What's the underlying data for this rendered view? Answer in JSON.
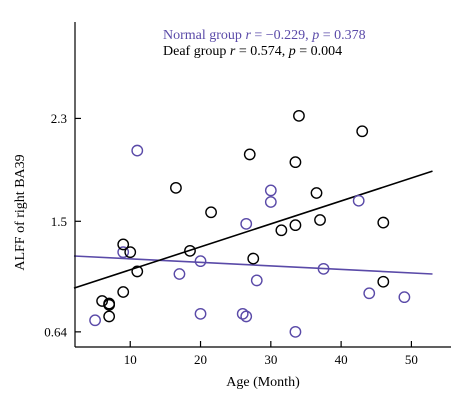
{
  "chart_data": {
    "type": "scatter",
    "xlabel": "Age (Month)",
    "ylabel": "ALFF of right BA39",
    "xlim": [
      2,
      53
    ],
    "ylim": [
      0.6,
      3.05
    ],
    "xticks": [
      10,
      20,
      30,
      40,
      50
    ],
    "xtick_labels": [
      "10",
      "20",
      "30",
      "40",
      "50"
    ],
    "yticks": [
      0.64,
      1.5,
      2.3
    ],
    "ytick_labels": [
      "0.64",
      "1.5",
      "2.3"
    ],
    "grid": false,
    "legend_position": "top",
    "annotations": [
      {
        "color": "#5a4aa8",
        "parts": [
          {
            "text": "Normal group ",
            "italic": false
          },
          {
            "text": "r",
            "italic": true
          },
          {
            "text": " = −0.229, ",
            "italic": false
          },
          {
            "text": "p",
            "italic": true
          },
          {
            "text": " = 0.378",
            "italic": false
          }
        ]
      },
      {
        "color": "#000000",
        "parts": [
          {
            "text": "Deaf group ",
            "italic": false
          },
          {
            "text": "r",
            "italic": true
          },
          {
            "text": " = 0.574, ",
            "italic": false
          },
          {
            "text": "p",
            "italic": true
          },
          {
            "text": " = 0.004",
            "italic": false
          }
        ]
      }
    ],
    "series": [
      {
        "name": "Normal group",
        "color": "#5a4aa8",
        "points": [
          [
            5,
            0.73
          ],
          [
            9,
            1.26
          ],
          [
            11,
            2.05
          ],
          [
            17,
            1.09
          ],
          [
            20,
            1.19
          ],
          [
            20,
            0.78
          ],
          [
            26,
            0.78
          ],
          [
            26.5,
            0.76
          ],
          [
            26.5,
            1.48
          ],
          [
            28,
            1.04
          ],
          [
            30,
            1.65
          ],
          [
            30,
            1.74
          ],
          [
            33.5,
            0.64
          ],
          [
            37.5,
            1.13
          ],
          [
            42.5,
            1.66
          ],
          [
            44,
            0.94
          ],
          [
            49,
            0.91
          ]
        ],
        "fit": {
          "x": [
            2,
            53
          ],
          "y": [
            1.23,
            1.09
          ]
        }
      },
      {
        "name": "Deaf group",
        "color": "#000000",
        "points": [
          [
            6,
            0.88
          ],
          [
            7,
            0.86
          ],
          [
            7,
            0.85
          ],
          [
            7,
            0.76
          ],
          [
            9,
            1.32
          ],
          [
            9,
            0.95
          ],
          [
            10,
            1.26
          ],
          [
            11,
            1.11
          ],
          [
            16.5,
            1.76
          ],
          [
            18.5,
            1.27
          ],
          [
            21.5,
            1.57
          ],
          [
            27,
            2.02
          ],
          [
            27.5,
            1.21
          ],
          [
            31.5,
            1.43
          ],
          [
            33.5,
            1.47
          ],
          [
            33.5,
            1.96
          ],
          [
            34,
            2.32
          ],
          [
            36.5,
            1.72
          ],
          [
            37,
            1.51
          ],
          [
            43,
            2.2
          ],
          [
            46,
            1.03
          ],
          [
            46,
            1.49
          ]
        ],
        "fit": {
          "x": [
            2,
            53
          ],
          "y": [
            0.98,
            1.89
          ]
        }
      }
    ]
  }
}
